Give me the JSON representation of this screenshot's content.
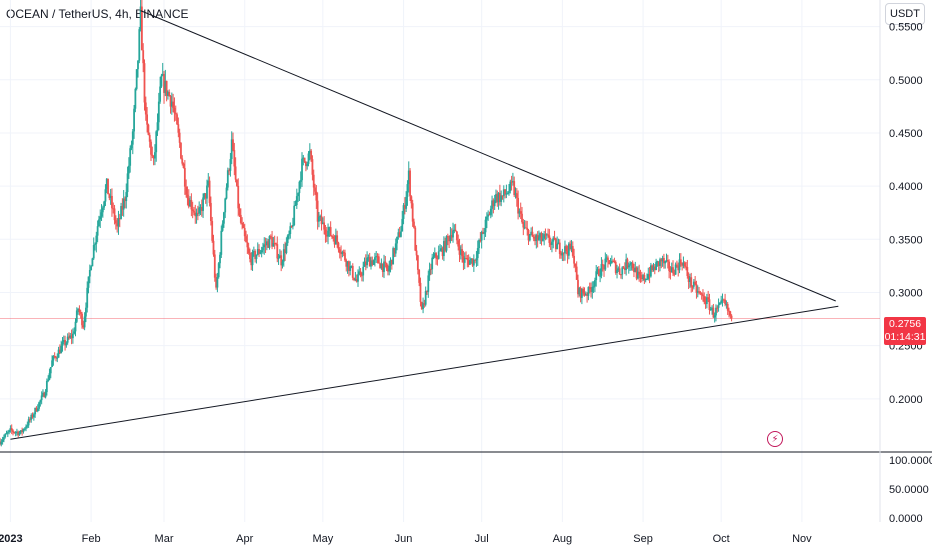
{
  "legend": {
    "text": "OCEAN / TetherUS, 4h, BINANCE"
  },
  "currency": "USDT",
  "last_price": {
    "price": "0.2756",
    "countdown": "01:14:31",
    "color": "#f23645"
  },
  "flash_icon": "lightning-icon",
  "colors": {
    "up": "#26a69a",
    "down": "#ef5350",
    "trendline": "#131722",
    "price_line": "#f23645"
  },
  "chart_data": {
    "type": "candlestick",
    "symbol": "OCEAN / TetherUS",
    "timeframe": "4h",
    "exchange": "BINANCE",
    "price_axis": {
      "ticks": [
        "0.5500",
        "0.5000",
        "0.4500",
        "0.4000",
        "0.3500",
        "0.3000",
        "0.2500",
        "0.2000"
      ],
      "range": [
        0.15,
        0.575
      ]
    },
    "volume_axis": {
      "ticks": [
        "100.0000",
        "50.0000",
        "0.0000"
      ]
    },
    "time_axis": {
      "ticks": [
        "2023",
        "Feb",
        "Mar",
        "Apr",
        "May",
        "Jun",
        "Jul",
        "Aug",
        "Sep",
        "Oct",
        "Nov"
      ],
      "day_range": [
        -4,
        334
      ]
    },
    "anchors": [
      [
        -4,
        0.16
      ],
      [
        0,
        0.17
      ],
      [
        4,
        0.168
      ],
      [
        8,
        0.182
      ],
      [
        13,
        0.205
      ],
      [
        16,
        0.235
      ],
      [
        20,
        0.25
      ],
      [
        24,
        0.26
      ],
      [
        26,
        0.285
      ],
      [
        28,
        0.27
      ],
      [
        31,
        0.33
      ],
      [
        34,
        0.37
      ],
      [
        37,
        0.4
      ],
      [
        41,
        0.36
      ],
      [
        44,
        0.39
      ],
      [
        47,
        0.45
      ],
      [
        49,
        0.52
      ],
      [
        50,
        0.56
      ],
      [
        52,
        0.46
      ],
      [
        55,
        0.42
      ],
      [
        58,
        0.5
      ],
      [
        62,
        0.48
      ],
      [
        65,
        0.44
      ],
      [
        68,
        0.39
      ],
      [
        72,
        0.37
      ],
      [
        76,
        0.4
      ],
      [
        79,
        0.3
      ],
      [
        82,
        0.38
      ],
      [
        85,
        0.44
      ],
      [
        88,
        0.37
      ],
      [
        92,
        0.33
      ],
      [
        96,
        0.34
      ],
      [
        100,
        0.35
      ],
      [
        104,
        0.33
      ],
      [
        108,
        0.36
      ],
      [
        112,
        0.42
      ],
      [
        115,
        0.43
      ],
      [
        118,
        0.37
      ],
      [
        121,
        0.36
      ],
      [
        125,
        0.35
      ],
      [
        129,
        0.33
      ],
      [
        133,
        0.31
      ],
      [
        137,
        0.33
      ],
      [
        141,
        0.33
      ],
      [
        145,
        0.32
      ],
      [
        150,
        0.36
      ],
      [
        153,
        0.41
      ],
      [
        156,
        0.33
      ],
      [
        158,
        0.28
      ],
      [
        162,
        0.33
      ],
      [
        166,
        0.34
      ],
      [
        170,
        0.36
      ],
      [
        174,
        0.33
      ],
      [
        178,
        0.33
      ],
      [
        182,
        0.36
      ],
      [
        186,
        0.39
      ],
      [
        189,
        0.39
      ],
      [
        193,
        0.4
      ],
      [
        197,
        0.36
      ],
      [
        201,
        0.35
      ],
      [
        206,
        0.35
      ],
      [
        212,
        0.34
      ],
      [
        216,
        0.34
      ],
      [
        218,
        0.3
      ],
      [
        222,
        0.3
      ],
      [
        226,
        0.32
      ],
      [
        230,
        0.33
      ],
      [
        234,
        0.32
      ],
      [
        238,
        0.33
      ],
      [
        242,
        0.31
      ],
      [
        246,
        0.32
      ],
      [
        250,
        0.33
      ],
      [
        254,
        0.32
      ],
      [
        258,
        0.33
      ],
      [
        261,
        0.31
      ],
      [
        264,
        0.3
      ],
      [
        268,
        0.29
      ],
      [
        270,
        0.28
      ],
      [
        274,
        0.29
      ],
      [
        277,
        0.2756
      ]
    ],
    "trendlines": [
      {
        "name": "upper",
        "from": [
          50,
          0.565
        ],
        "to": [
          317,
          0.292
        ]
      },
      {
        "name": "lower",
        "from": [
          0,
          0.162
        ],
        "to": [
          318,
          0.287
        ]
      }
    ],
    "last_price": 0.2756
  }
}
